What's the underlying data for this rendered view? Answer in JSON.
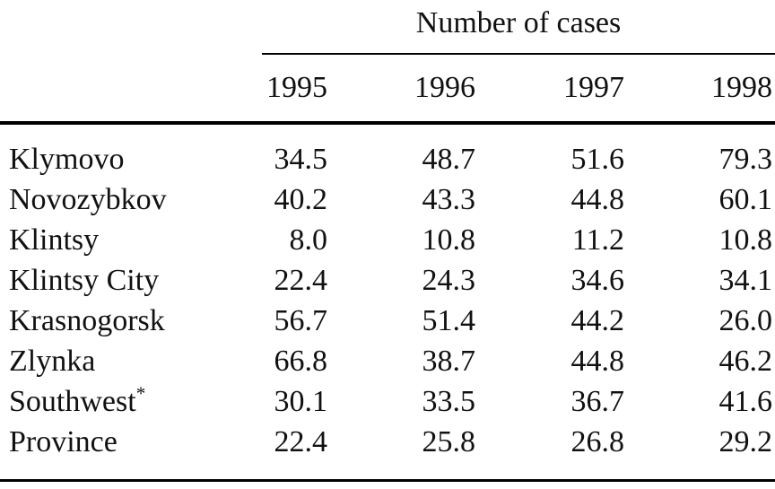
{
  "table": {
    "spanner": "Number of cases",
    "columns": [
      "1995",
      "1996",
      "1997",
      "1998"
    ],
    "rows": [
      {
        "label": "Klymovo",
        "values": [
          "34.5",
          "48.7",
          "51.6",
          "79.3"
        ]
      },
      {
        "label": "Novozybkov",
        "values": [
          "40.2",
          "43.3",
          "44.8",
          "60.1"
        ]
      },
      {
        "label": "Klintsy",
        "values": [
          "8.0",
          "10.8",
          "11.2",
          "10.8"
        ]
      },
      {
        "label": "Klintsy City",
        "values": [
          "22.4",
          "24.3",
          "34.6",
          "34.1"
        ]
      },
      {
        "label": "Krasnogorsk",
        "values": [
          "56.7",
          "51.4",
          "44.2",
          "26.0"
        ]
      },
      {
        "label": "Zlynka",
        "values": [
          "66.8",
          "38.7",
          "44.8",
          "46.2"
        ]
      },
      {
        "label": "Southwest",
        "label_sup": "*",
        "values": [
          "30.1",
          "33.5",
          "36.7",
          "41.6"
        ]
      },
      {
        "label": "Province",
        "values": [
          "22.4",
          "25.8",
          "26.8",
          "29.2"
        ]
      }
    ],
    "colors": {
      "text": "#111111",
      "rule": "#000000",
      "background": "#ffffff"
    }
  },
  "chart_data": {
    "type": "table",
    "title": "Number of cases",
    "columns": [
      "1995",
      "1996",
      "1997",
      "1998"
    ],
    "row_labels": [
      "Klymovo",
      "Novozybkov",
      "Klintsy",
      "Klintsy City",
      "Krasnogorsk",
      "Zlynka",
      "Southwest*",
      "Province"
    ],
    "series": [
      {
        "name": "1995",
        "values": [
          34.5,
          40.2,
          8.0,
          22.4,
          56.7,
          66.8,
          30.1,
          22.4
        ]
      },
      {
        "name": "1996",
        "values": [
          48.7,
          43.3,
          10.8,
          24.3,
          51.4,
          38.7,
          33.5,
          25.8
        ]
      },
      {
        "name": "1997",
        "values": [
          51.6,
          44.8,
          11.2,
          34.6,
          44.2,
          44.8,
          36.7,
          26.8
        ]
      },
      {
        "name": "1998",
        "values": [
          79.3,
          60.1,
          10.8,
          34.1,
          26.0,
          46.2,
          41.6,
          29.2
        ]
      }
    ]
  }
}
